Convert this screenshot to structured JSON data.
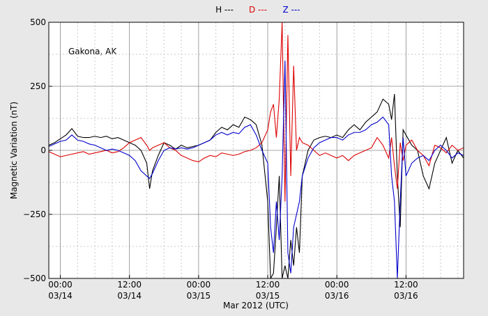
{
  "chart_data": {
    "type": "line",
    "annotation": "Gakona, AK",
    "x_label": "Mar 2012 (UTC)",
    "y_label": "Magnetic Variation (nT)",
    "xlim": [
      "2012-03-13 22:00",
      "2012-03-16 22:00"
    ],
    "xticks": [
      {
        "value": "2012-03-14 00:00",
        "label": [
          "00:00",
          "03/14"
        ]
      },
      {
        "value": "2012-03-14 12:00",
        "label": [
          "12:00",
          "03/14"
        ]
      },
      {
        "value": "2012-03-15 00:00",
        "label": [
          "00:00",
          "03/15"
        ]
      },
      {
        "value": "2012-03-15 12:00",
        "label": [
          "12:00",
          "03/15"
        ]
      },
      {
        "value": "2012-03-16 00:00",
        "label": [
          "00:00",
          "03/16"
        ]
      },
      {
        "value": "2012-03-16 12:00",
        "label": [
          "12:00",
          "03/16"
        ]
      }
    ],
    "minor_xticks": [
      "2012-03-14 03:00",
      "2012-03-14 06:00",
      "2012-03-14 09:00",
      "2012-03-14 15:00",
      "2012-03-14 18:00",
      "2012-03-14 21:00",
      "2012-03-15 03:00",
      "2012-03-15 06:00",
      "2012-03-15 09:00",
      "2012-03-15 15:00",
      "2012-03-15 18:00",
      "2012-03-15 21:00",
      "2012-03-16 03:00",
      "2012-03-16 06:00",
      "2012-03-16 09:00",
      "2012-03-16 15:00",
      "2012-03-16 18:00",
      "2012-03-16 21:00"
    ],
    "ylim": [
      -500,
      500
    ],
    "yticks": [
      {
        "value": -500,
        "label": "−500"
      },
      {
        "value": -250,
        "label": "−250"
      },
      0,
      250,
      500
    ],
    "minor_yticks": [
      -375,
      -125,
      125,
      375
    ],
    "grid": true,
    "x": [
      "2012-03-13 22:00",
      "2012-03-13 23:00",
      "2012-03-14 00:00",
      "2012-03-14 01:00",
      "2012-03-14 02:00",
      "2012-03-14 03:00",
      "2012-03-14 04:00",
      "2012-03-14 05:00",
      "2012-03-14 06:00",
      "2012-03-14 07:00",
      "2012-03-14 08:00",
      "2012-03-14 09:00",
      "2012-03-14 10:00",
      "2012-03-14 11:00",
      "2012-03-14 12:00",
      "2012-03-14 13:00",
      "2012-03-14 14:00",
      "2012-03-14 15:00",
      "2012-03-14 15:30",
      "2012-03-14 16:00",
      "2012-03-14 17:00",
      "2012-03-14 18:00",
      "2012-03-14 19:00",
      "2012-03-14 20:00",
      "2012-03-14 21:00",
      "2012-03-14 22:00",
      "2012-03-14 23:00",
      "2012-03-15 00:00",
      "2012-03-15 01:00",
      "2012-03-15 02:00",
      "2012-03-15 03:00",
      "2012-03-15 04:00",
      "2012-03-15 05:00",
      "2012-03-15 06:00",
      "2012-03-15 07:00",
      "2012-03-15 08:00",
      "2012-03-15 09:00",
      "2012-03-15 10:00",
      "2012-03-15 11:00",
      "2012-03-15 12:00",
      "2012-03-15 12:30",
      "2012-03-15 13:00",
      "2012-03-15 13:30",
      "2012-03-15 14:00",
      "2012-03-15 14:30",
      "2012-03-15 15:00",
      "2012-03-15 15:30",
      "2012-03-15 16:00",
      "2012-03-15 16:30",
      "2012-03-15 17:00",
      "2012-03-15 17:30",
      "2012-03-15 18:00",
      "2012-03-15 19:00",
      "2012-03-15 20:00",
      "2012-03-15 21:00",
      "2012-03-15 22:00",
      "2012-03-15 23:00",
      "2012-03-16 00:00",
      "2012-03-16 01:00",
      "2012-03-16 02:00",
      "2012-03-16 03:00",
      "2012-03-16 04:00",
      "2012-03-16 05:00",
      "2012-03-16 06:00",
      "2012-03-16 07:00",
      "2012-03-16 08:00",
      "2012-03-16 09:00",
      "2012-03-16 09:30",
      "2012-03-16 10:00",
      "2012-03-16 10:30",
      "2012-03-16 11:00",
      "2012-03-16 11:30",
      "2012-03-16 12:00",
      "2012-03-16 13:00",
      "2012-03-16 14:00",
      "2012-03-16 15:00",
      "2012-03-16 16:00",
      "2012-03-16 17:00",
      "2012-03-16 18:00",
      "2012-03-16 19:00",
      "2012-03-16 20:00",
      "2012-03-16 21:00",
      "2012-03-16 22:00"
    ],
    "series": [
      {
        "name": "H ---",
        "color": "#000000",
        "values": [
          20,
          30,
          45,
          60,
          85,
          55,
          50,
          50,
          55,
          50,
          55,
          45,
          50,
          40,
          30,
          20,
          0,
          -50,
          -150,
          -80,
          -20,
          30,
          20,
          5,
          20,
          10,
          15,
          20,
          30,
          40,
          70,
          90,
          80,
          100,
          90,
          130,
          120,
          100,
          20,
          -200,
          -500,
          -480,
          -300,
          -100,
          -500,
          -450,
          -500,
          -350,
          -450,
          -300,
          -400,
          -100,
          0,
          40,
          50,
          55,
          50,
          60,
          50,
          80,
          100,
          80,
          110,
          130,
          150,
          200,
          180,
          120,
          220,
          -100,
          -300,
          80,
          60,
          20,
          0,
          -100,
          -150,
          -50,
          0,
          50,
          -50,
          0,
          -30
        ]
      },
      {
        "name": "D ---",
        "color": "#dd0000",
        "values": [
          -5,
          -15,
          -25,
          -20,
          -15,
          -10,
          -5,
          -15,
          -10,
          -5,
          0,
          -10,
          -5,
          10,
          30,
          40,
          50,
          20,
          0,
          10,
          20,
          30,
          10,
          0,
          -20,
          -30,
          -40,
          -45,
          -30,
          -20,
          -25,
          -10,
          -15,
          -20,
          -15,
          -5,
          0,
          10,
          30,
          80,
          150,
          180,
          50,
          200,
          500,
          -200,
          450,
          -100,
          330,
          0,
          50,
          30,
          20,
          0,
          -20,
          -10,
          -20,
          -30,
          -20,
          -40,
          -20,
          -10,
          0,
          10,
          50,
          20,
          -30,
          50,
          -60,
          -150,
          30,
          -40,
          20,
          40,
          0,
          -20,
          -60,
          20,
          10,
          -10,
          20,
          0,
          10
        ]
      },
      {
        "name": "Z ---",
        "color": "#0000cc",
        "values": [
          15,
          25,
          35,
          40,
          60,
          40,
          35,
          25,
          20,
          10,
          0,
          5,
          0,
          -10,
          -20,
          -40,
          -80,
          -100,
          -110,
          -90,
          -40,
          0,
          10,
          5,
          10,
          5,
          10,
          20,
          30,
          40,
          60,
          70,
          60,
          70,
          65,
          90,
          100,
          60,
          0,
          -50,
          -300,
          -400,
          -200,
          -350,
          -100,
          350,
          -400,
          -480,
          -300,
          -250,
          -200,
          -100,
          -30,
          10,
          30,
          40,
          50,
          50,
          40,
          60,
          70,
          70,
          80,
          100,
          110,
          130,
          100,
          -100,
          -200,
          -500,
          -200,
          50,
          -100,
          -50,
          -30,
          -20,
          -40,
          0,
          20,
          0,
          -30,
          -10,
          -20
        ]
      }
    ]
  }
}
